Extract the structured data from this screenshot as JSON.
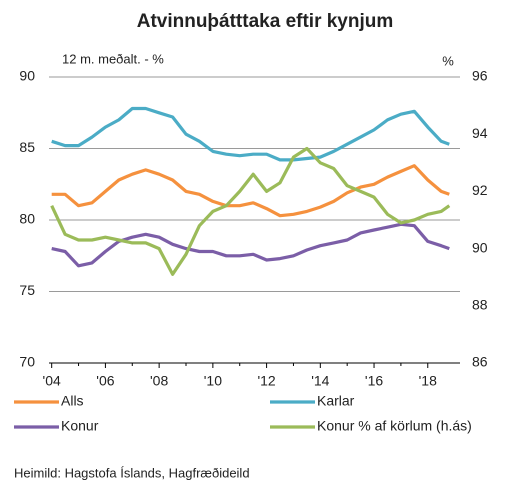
{
  "chart_data": {
    "type": "line",
    "title": "Atvinnuþátttaka eftir kynjum",
    "y_label": "12 m. meðalt. - %",
    "y2_label": "%",
    "source": "Heimild: Hagstofa Íslands, Hagfræðideild",
    "x": [
      2004,
      2004.5,
      2005,
      2005.5,
      2006,
      2006.5,
      2007,
      2007.5,
      2008,
      2008.5,
      2009,
      2009.5,
      2010,
      2010.5,
      2011,
      2011.5,
      2012,
      2012.5,
      2013,
      2013.5,
      2014,
      2014.5,
      2015,
      2015.5,
      2016,
      2016.5,
      2017,
      2017.5,
      2018,
      2018.5,
      2018.8
    ],
    "series": [
      {
        "name": "Alls",
        "color": "#f5913e",
        "values": [
          81.8,
          81.8,
          81.0,
          81.2,
          82.0,
          82.8,
          83.2,
          83.5,
          83.2,
          82.8,
          82.0,
          81.8,
          81.3,
          81.0,
          81.0,
          81.2,
          80.8,
          80.3,
          80.4,
          80.6,
          80.9,
          81.3,
          81.9,
          82.3,
          82.5,
          83.0,
          83.4,
          83.8,
          82.8,
          82.0,
          81.8
        ]
      },
      {
        "name": "Karlar",
        "color": "#4bacc6",
        "values": [
          85.5,
          85.2,
          85.2,
          85.8,
          86.5,
          87.0,
          87.8,
          87.8,
          87.5,
          87.2,
          86.0,
          85.5,
          84.8,
          84.6,
          84.5,
          84.6,
          84.6,
          84.2,
          84.2,
          84.3,
          84.4,
          84.8,
          85.3,
          85.8,
          86.3,
          87.0,
          87.4,
          87.6,
          86.5,
          85.5,
          85.3
        ]
      },
      {
        "name": "Konur",
        "color": "#7b5ea7",
        "values": [
          78.0,
          77.8,
          76.8,
          77.0,
          77.8,
          78.5,
          78.8,
          79.0,
          78.8,
          78.3,
          78.0,
          77.8,
          77.8,
          77.5,
          77.5,
          77.6,
          77.2,
          77.3,
          77.5,
          77.9,
          78.2,
          78.4,
          78.6,
          79.1,
          79.3,
          79.5,
          79.7,
          79.6,
          78.5,
          78.2,
          78.0
        ]
      },
      {
        "name": "Konur % af körlum (h.ás)",
        "color": "#9bbb59",
        "axis": "y2",
        "values": [
          91.5,
          90.5,
          90.3,
          90.3,
          90.4,
          90.3,
          90.2,
          90.2,
          90.0,
          89.1,
          89.8,
          90.8,
          91.3,
          91.5,
          92.0,
          92.6,
          92.0,
          92.3,
          93.2,
          93.5,
          93.0,
          92.8,
          92.2,
          92.0,
          91.8,
          91.2,
          90.9,
          91.0,
          91.2,
          91.3,
          91.5
        ]
      }
    ],
    "xlim": [
      2003.9,
      2019.2
    ],
    "xticks": [
      {
        "value": 2004,
        "label": "'04"
      },
      {
        "value": 2006,
        "label": "'06"
      },
      {
        "value": 2008,
        "label": "'08"
      },
      {
        "value": 2010,
        "label": "'10"
      },
      {
        "value": 2012,
        "label": "'12"
      },
      {
        "value": 2014,
        "label": "'14"
      },
      {
        "value": 2016,
        "label": "'16"
      },
      {
        "value": 2018,
        "label": "'18"
      }
    ],
    "ylim": [
      70,
      90
    ],
    "yticks": [
      70,
      75,
      80,
      85,
      90
    ],
    "y2lim": [
      86,
      96
    ],
    "y2ticks": [
      86,
      88,
      90,
      92,
      94,
      96
    ],
    "grid": true,
    "legend": "bottom"
  }
}
